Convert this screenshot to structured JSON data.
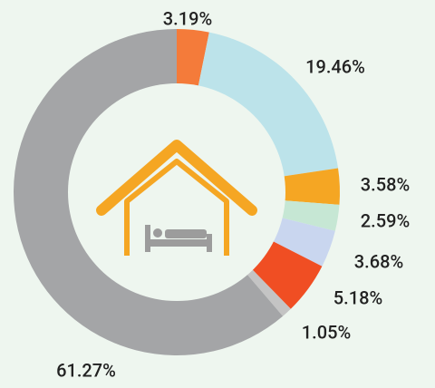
{
  "chart_data": {
    "type": "donut",
    "values": [
      3.19,
      19.46,
      3.58,
      2.59,
      3.68,
      5.18,
      1.05,
      61.27
    ],
    "value_labels": [
      "3.19%",
      "19.46%",
      "3.58%",
      "2.59%",
      "3.68%",
      "5.18%",
      "1.05%",
      "61.27%"
    ],
    "colors": [
      "#f47b3a",
      "#bce3ea",
      "#f5a623",
      "#c6e7d4",
      "#c9d6ef",
      "#f04e23",
      "#c4c4c4",
      "#a4a5a7"
    ]
  }
}
